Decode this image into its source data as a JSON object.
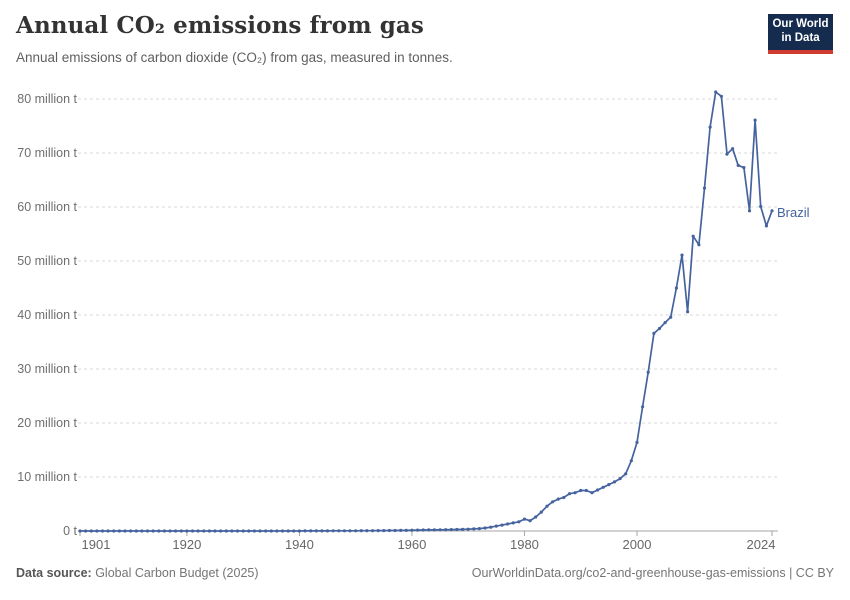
{
  "header": {
    "title": "Annual CO₂ emissions from gas",
    "subtitle": "Annual emissions of carbon dioxide (CO₂) from gas, measured in tonnes."
  },
  "logo": {
    "line1": "Our World",
    "line2": "in Data"
  },
  "footer": {
    "source_prefix": "Data source:",
    "source_text": " Global Carbon Budget (2025)",
    "credit": "OurWorldinData.org/co2-and-greenhouse-gas-emissions | CC BY"
  },
  "colors": {
    "line": "#45639E",
    "grid": "#d9d9d9",
    "axis": "#a6a6a6",
    "y_tick_text": "#6e6e6e",
    "x_tick_text": "#676767",
    "brand_bg": "#152C4E",
    "brand_red": "#CF3B31"
  },
  "chart_data": {
    "type": "line",
    "title": "Annual CO₂ emissions from gas",
    "subtitle": "Annual emissions of carbon dioxide (CO₂) from gas, measured in tonnes.",
    "unit": "million tonnes",
    "xlim": [
      1901,
      2024
    ],
    "ylim": [
      0,
      80
    ],
    "grid": "horizontal-dashed",
    "legend": "end-of-line-label",
    "yticks": [
      0,
      10,
      20,
      30,
      40,
      50,
      60,
      70,
      80
    ],
    "ytick_labels": [
      "0 t",
      "10 million t",
      "20 million t",
      "30 million t",
      "40 million t",
      "50 million t",
      "60 million t",
      "70 million t",
      "80 million t"
    ],
    "xticks": [
      1901,
      1920,
      1940,
      1960,
      1980,
      2000,
      2024
    ],
    "xtick_labels": [
      "1901",
      "1920",
      "1940",
      "1960",
      "1980",
      "2000",
      "2024"
    ],
    "series": [
      {
        "name": "Brazil",
        "years": [
          1901,
          1902,
          1903,
          1904,
          1905,
          1906,
          1907,
          1908,
          1909,
          1910,
          1911,
          1912,
          1913,
          1914,
          1915,
          1916,
          1917,
          1918,
          1919,
          1920,
          1921,
          1922,
          1923,
          1924,
          1925,
          1926,
          1927,
          1928,
          1929,
          1930,
          1931,
          1932,
          1933,
          1934,
          1935,
          1936,
          1937,
          1938,
          1939,
          1940,
          1941,
          1942,
          1943,
          1944,
          1945,
          1946,
          1947,
          1948,
          1949,
          1950,
          1951,
          1952,
          1953,
          1954,
          1955,
          1956,
          1957,
          1958,
          1959,
          1960,
          1961,
          1962,
          1963,
          1964,
          1965,
          1966,
          1967,
          1968,
          1969,
          1970,
          1971,
          1972,
          1973,
          1974,
          1975,
          1976,
          1977,
          1978,
          1979,
          1980,
          1981,
          1982,
          1983,
          1984,
          1985,
          1986,
          1987,
          1988,
          1989,
          1990,
          1991,
          1992,
          1993,
          1994,
          1995,
          1996,
          1997,
          1998,
          1999,
          2000,
          2001,
          2002,
          2003,
          2004,
          2005,
          2006,
          2007,
          2008,
          2009,
          2010,
          2011,
          2012,
          2013,
          2014,
          2015,
          2016,
          2017,
          2018,
          2019,
          2020,
          2021,
          2022,
          2023,
          2024
        ],
        "values": [
          0,
          0,
          0,
          0,
          0,
          0,
          0,
          0,
          0,
          0,
          0,
          0,
          0,
          0,
          0,
          0,
          0,
          0,
          0,
          0,
          0,
          0,
          0,
          0,
          0,
          0,
          0,
          0,
          0,
          0,
          0,
          0,
          0,
          0,
          0,
          0,
          0,
          0,
          0,
          0,
          0.01,
          0.01,
          0.02,
          0.02,
          0.02,
          0.03,
          0.03,
          0.03,
          0.04,
          0.04,
          0.05,
          0.05,
          0.06,
          0.07,
          0.08,
          0.09,
          0.1,
          0.11,
          0.12,
          0.14,
          0.16,
          0.18,
          0.2,
          0.21,
          0.22,
          0.24,
          0.26,
          0.28,
          0.3,
          0.33,
          0.38,
          0.45,
          0.55,
          0.7,
          0.9,
          1.1,
          1.3,
          1.5,
          1.7,
          2.2,
          1.9,
          2.6,
          3.5,
          4.6,
          5.4,
          5.9,
          6.2,
          6.9,
          7.1,
          7.5,
          7.5,
          7.1,
          7.6,
          8.1,
          8.6,
          9.1,
          9.7,
          10.6,
          13.0,
          16.4,
          23.0,
          29.4,
          36.6,
          37.5,
          38.6,
          39.6,
          45.0,
          51.1,
          40.6,
          54.6,
          53.0,
          63.5,
          74.8,
          81.3,
          80.5,
          69.8,
          70.8,
          67.7,
          67.3,
          59.3,
          76.1,
          60.1,
          56.5,
          59.3
        ]
      }
    ]
  }
}
